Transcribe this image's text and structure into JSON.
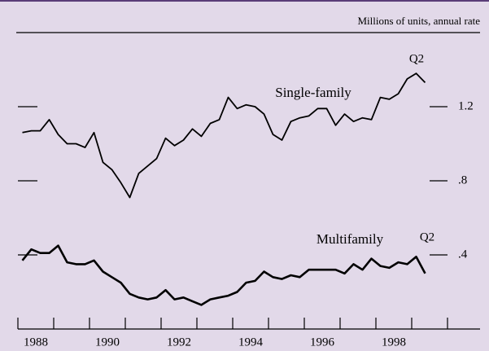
{
  "chart_data": {
    "type": "line",
    "subtitle": "Millions of units, annual rate",
    "x": [
      1988.125,
      1988.375,
      1988.625,
      1988.875,
      1989.125,
      1989.375,
      1989.625,
      1989.875,
      1990.125,
      1990.375,
      1990.625,
      1990.875,
      1991.125,
      1991.375,
      1991.625,
      1991.875,
      1992.125,
      1992.375,
      1992.625,
      1992.875,
      1993.125,
      1993.375,
      1993.625,
      1993.875,
      1994.125,
      1994.375,
      1994.625,
      1994.875,
      1995.125,
      1995.375,
      1995.625,
      1995.875,
      1996.125,
      1996.375,
      1996.625,
      1996.875,
      1997.125,
      1997.375,
      1997.625,
      1997.875,
      1998.125,
      1998.375,
      1998.625,
      1998.875,
      1999.125,
      1999.375
    ],
    "series": [
      {
        "name": "Single-family",
        "color": "#000000",
        "values": [
          1.06,
          1.07,
          1.07,
          1.13,
          1.05,
          1.0,
          1.0,
          0.98,
          1.06,
          0.9,
          0.86,
          0.79,
          0.71,
          0.84,
          0.88,
          0.92,
          1.03,
          0.99,
          1.02,
          1.08,
          1.04,
          1.11,
          1.13,
          1.25,
          1.19,
          1.21,
          1.2,
          1.16,
          1.05,
          1.02,
          1.12,
          1.14,
          1.15,
          1.19,
          1.19,
          1.1,
          1.16,
          1.12,
          1.14,
          1.13,
          1.25,
          1.24,
          1.27,
          1.35,
          1.38,
          1.33
        ]
      },
      {
        "name": "Multifamily",
        "color": "#000000",
        "values": [
          0.37,
          0.43,
          0.41,
          0.41,
          0.45,
          0.36,
          0.35,
          0.35,
          0.37,
          0.31,
          0.28,
          0.25,
          0.19,
          0.17,
          0.16,
          0.17,
          0.21,
          0.16,
          0.17,
          0.15,
          0.13,
          0.16,
          0.17,
          0.18,
          0.2,
          0.25,
          0.26,
          0.31,
          0.28,
          0.27,
          0.29,
          0.28,
          0.32,
          0.32,
          0.32,
          0.32,
          0.3,
          0.35,
          0.32,
          0.38,
          0.34,
          0.33,
          0.36,
          0.35,
          0.39,
          0.3
        ]
      }
    ],
    "annotations": [
      "Q2",
      "Q2"
    ],
    "xlim": [
      1988,
      2000
    ],
    "xticks": [
      1988,
      1989,
      1990,
      1991,
      1992,
      1993,
      1994,
      1995,
      1996,
      1997,
      1998,
      1999,
      2000
    ],
    "xtick_labels": [
      {
        "value": 1988.5,
        "label": "1988"
      },
      {
        "value": 1990.5,
        "label": "1990"
      },
      {
        "value": 1992.5,
        "label": "1992"
      },
      {
        "value": 1994.5,
        "label": "1994"
      },
      {
        "value": 1996.5,
        "label": "1996"
      },
      {
        "value": 1998.5,
        "label": "1998"
      }
    ],
    "ylim": [
      0,
      1.6
    ],
    "yticks": [
      {
        "value": 0.4,
        "label": ".4"
      },
      {
        "value": 0.8,
        "label": ".8"
      },
      {
        "value": 1.2,
        "label": "1.2"
      }
    ]
  }
}
